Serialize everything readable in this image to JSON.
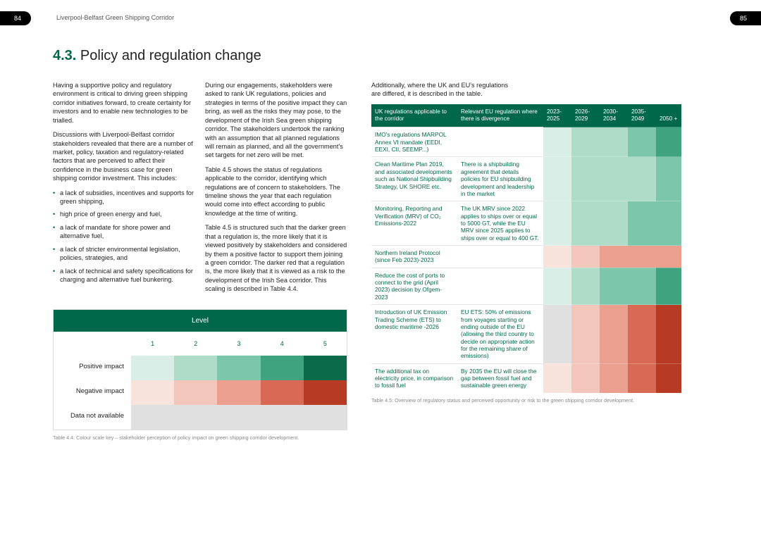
{
  "page_left_num": "84",
  "page_right_num": "85",
  "running_header": "Liverpool-Belfast Green Shipping Corridor",
  "heading_num": "4.3.",
  "heading_text": "Policy and regulation change",
  "left": {
    "col1": {
      "p1": "Having a supportive policy and regulatory environment is critical to driving green shipping corridor initiatives forward, to create certainty for investors and to enable new technologies to be trialled.",
      "p2": "Discussions with Liverpool-Belfast corridor stakeholders revealed that there are a number of market, policy, taxation and regulatory-related factors that are perceived to affect their confidence in the business case for green shipping corridor investment. This includes:",
      "bullets": [
        "a lack of subsidies, incentives and supports for green shipping,",
        "high price of green energy and fuel,",
        "a lack of mandate for shore power and alternative fuel,",
        "a lack of stricter environmental legislation, policies, strategies, and",
        "a lack of technical and safety specifications for charging and alternative fuel bunkering."
      ]
    },
    "col2": {
      "p1": "During our engagements, stakeholders were asked to rank UK regulations, policies and strategies in terms of the positive impact they can bring, as well as the risks they may pose, to the development of the Irish Sea green shipping corridor. The stakeholders undertook the ranking with an assumption that all planned regulations will remain as planned, and all the government's set targets for net zero will be met.",
      "p2": "Table 4.5 shows the status of regulations applicable to the corridor, identifying which regulations are of concern to stakeholders. The timeline shows the year that each regulation would come into effect according to public knowledge at the time of writing.",
      "p3": "Table 4.5 is structured such that the darker green that a regulation is, the more likely that it is viewed positively by stakeholders and considered by them a positive factor to support them joining a green corridor. The darker red that a regulation is, the more likely that it is viewed as a risk to the development of the Irish Sea corridor. This scaling is described in Table 4.4."
    },
    "scale": {
      "title": "Level",
      "nums": [
        "1",
        "2",
        "3",
        "4",
        "5"
      ],
      "rows": [
        {
          "label": "Positive impact",
          "colors": [
            "#d9eee6",
            "#aedcc9",
            "#7cc7ab",
            "#3fa380",
            "#0a6a49"
          ]
        },
        {
          "label": "Negative impact",
          "colors": [
            "#f8e2dc",
            "#f3c6bb",
            "#ea9f8f",
            "#d86a55",
            "#b73a24"
          ]
        },
        {
          "label": "Data not available",
          "colors": [
            "#e0e0e0",
            "#e0e0e0",
            "#e0e0e0",
            "#e0e0e0",
            "#e0e0e0"
          ]
        }
      ],
      "caption": "Table 4.4: Colour scale key – stakeholder perception of policy impact on green shipping corridor development."
    }
  },
  "right": {
    "intro": "Additionally, where the UK and EU's regulations are differed, it is described in the table.",
    "headers": [
      "UK regulations applicable to the corridor",
      "Relevant EU regulation where there is divergence",
      "2023-2025",
      "2026-2029",
      "2030-2034",
      "2035-2049",
      "2050 +"
    ],
    "col_widths": [
      "122px",
      "122px",
      "40px",
      "40px",
      "40px",
      "40px",
      "36px"
    ],
    "rows": [
      {
        "uk": "IMO's regulations MARPOL Annex VI mandate (EEDI, EEXI, CII, SEEMP...)",
        "eu": "",
        "cells": [
          "#d9eee6",
          "#aedcc9",
          "#aedcc9",
          "#7cc7ab",
          "#3fa380"
        ]
      },
      {
        "uk": "Clean Maritime Plan 2019, and associated developments such as National Shipbuilding Strategy, UK SHORE etc.",
        "eu": "There is a shipbuilding agreement that details policies for EU shipbuilding development and leadership in the market",
        "cells": [
          "#d9eee6",
          "#aedcc9",
          "#aedcc9",
          "#aedcc9",
          "#7cc7ab"
        ]
      },
      {
        "uk": "Monitoring, Reporting and Verification (MRV) of CO₂ Emissions-2022",
        "eu": "The UK MRV since 2022 applies to ships over or equal to 5000 GT, while the EU MRV since 2025 applies to ships over or equal to 400 GT.",
        "cells": [
          "#d9eee6",
          "#aedcc9",
          "#aedcc9",
          "#7cc7ab",
          "#7cc7ab"
        ]
      },
      {
        "uk": "Northern Ireland Protocol (since Feb 2023)-2023",
        "eu": "",
        "cells": [
          "#f8e2dc",
          "#f3c6bb",
          "#ea9f8f",
          "#ea9f8f",
          "#ea9f8f"
        ]
      },
      {
        "uk": "Reduce the cost of ports to connect to the grid (April 2023) decision by Ofgem-2023",
        "eu": "",
        "cells": [
          "#d9eee6",
          "#aedcc9",
          "#7cc7ab",
          "#7cc7ab",
          "#3fa380"
        ]
      },
      {
        "uk": "Introduction of UK Emission Trading Scheme (ETS) to domestic maritime -2026",
        "eu": "EU ETS: 50% of emissions from voyages starting or ending outside of the EU (allowing the third country to decide on appropriate action for the remaining share of emissions)",
        "cells": [
          "#e0e0e0",
          "#f3c6bb",
          "#ea9f8f",
          "#d86a55",
          "#b73a24"
        ]
      },
      {
        "uk": "The additional tax on electricity price, in comparison to fossil fuel",
        "eu": "By 2035 the EU will close the gap between fossil fuel and sustainable green energy",
        "cells": [
          "#f8e2dc",
          "#f3c6bb",
          "#ea9f8f",
          "#d86a55",
          "#b73a24"
        ]
      }
    ],
    "caption": "Table 4.5: Overview of regulatory status and perceived opportunity or risk to the green shipping corridor development."
  }
}
